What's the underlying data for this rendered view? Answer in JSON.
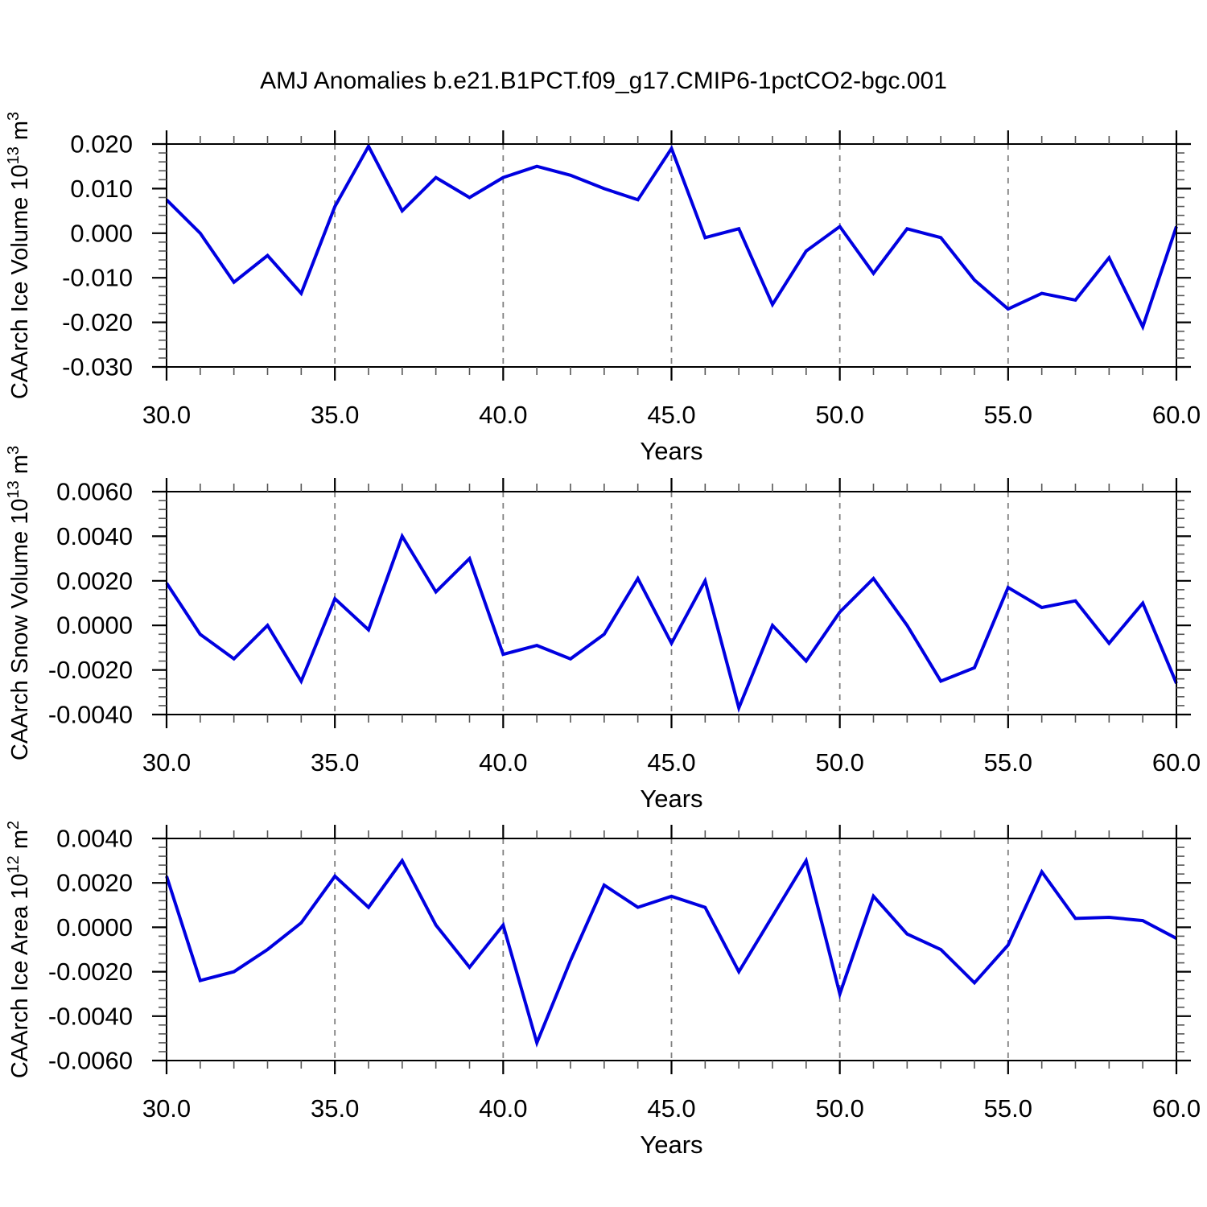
{
  "title": "AMJ Anomalies b.e21.B1PCT.f09_g17.CMIP6-1pctCO2-bgc.001",
  "line_color": "#0000e0",
  "chart_data": [
    {
      "type": "line",
      "ylabel": "CAArch Ice Volume 10^13 m^3",
      "ylabel_parts": [
        {
          "t": "CAArch Ice Volume 10"
        },
        {
          "s": "13"
        },
        {
          "t": " m"
        },
        {
          "s": "3"
        }
      ],
      "xlabel": "Years",
      "xlim": [
        30,
        60
      ],
      "xticks": [
        30,
        35,
        40,
        45,
        50,
        55,
        60
      ],
      "xtick_decimals": 1,
      "grid_x_dashed": [
        35,
        40,
        45,
        50,
        55
      ],
      "ylim": [
        -0.03,
        0.02
      ],
      "ytick_step": 0.01,
      "ytick_decimals": 3,
      "x": [
        30,
        31,
        32,
        33,
        34,
        35,
        36,
        37,
        38,
        39,
        40,
        41,
        42,
        43,
        44,
        45,
        46,
        47,
        48,
        49,
        50,
        51,
        52,
        53,
        54,
        55,
        56,
        57,
        58,
        59,
        60
      ],
      "values": [
        0.0075,
        0.0,
        -0.011,
        -0.005,
        -0.0135,
        0.006,
        0.0195,
        0.005,
        0.0125,
        0.008,
        0.0125,
        0.015,
        0.013,
        0.01,
        0.0075,
        0.019,
        -0.001,
        0.001,
        -0.016,
        -0.004,
        0.0015,
        -0.009,
        0.001,
        -0.001,
        -0.0105,
        -0.017,
        -0.0135,
        -0.015,
        -0.0055,
        -0.021,
        0.0015
      ]
    },
    {
      "type": "line",
      "ylabel": "CAArch Snow Volume 10^13 m^3",
      "ylabel_parts": [
        {
          "t": "CAArch Snow Volume 10"
        },
        {
          "s": "13"
        },
        {
          "t": " m"
        },
        {
          "s": "3"
        }
      ],
      "xlabel": "Years",
      "xlim": [
        30,
        60
      ],
      "xticks": [
        30,
        35,
        40,
        45,
        50,
        55,
        60
      ],
      "xtick_decimals": 1,
      "grid_x_dashed": [
        35,
        40,
        45,
        50,
        55
      ],
      "ylim": [
        -0.004,
        0.006
      ],
      "ytick_step": 0.002,
      "ytick_decimals": 4,
      "x": [
        30,
        31,
        32,
        33,
        34,
        35,
        36,
        37,
        38,
        39,
        40,
        41,
        42,
        43,
        44,
        45,
        46,
        47,
        48,
        49,
        50,
        51,
        52,
        53,
        54,
        55,
        56,
        57,
        58,
        59,
        60
      ],
      "values": [
        0.0019,
        -0.0004,
        -0.0015,
        0.0,
        -0.0025,
        0.0012,
        -0.0002,
        0.004,
        0.0015,
        0.003,
        -0.0013,
        -0.0009,
        -0.0015,
        -0.0004,
        0.0021,
        -0.0008,
        0.002,
        -0.0037,
        0.0,
        -0.0016,
        0.0006,
        0.0021,
        0.0,
        -0.0025,
        -0.0019,
        0.0017,
        0.0008,
        0.0011,
        -0.0008,
        0.001,
        -0.0026
      ]
    },
    {
      "type": "line",
      "ylabel": "CAArch Ice Area 10^12 m^2",
      "ylabel_parts": [
        {
          "t": "CAArch Ice Area 10"
        },
        {
          "s": "12"
        },
        {
          "t": " m"
        },
        {
          "s": "2"
        }
      ],
      "xlabel": "Years",
      "xlim": [
        30,
        60
      ],
      "xticks": [
        30,
        35,
        40,
        45,
        50,
        55,
        60
      ],
      "xtick_decimals": 1,
      "grid_x_dashed": [
        35,
        40,
        45,
        50,
        55
      ],
      "ylim": [
        -0.006,
        0.004
      ],
      "ytick_step": 0.002,
      "ytick_decimals": 4,
      "x": [
        30,
        31,
        32,
        33,
        34,
        35,
        36,
        37,
        38,
        39,
        40,
        41,
        42,
        43,
        44,
        45,
        46,
        47,
        48,
        49,
        50,
        51,
        52,
        53,
        54,
        55,
        56,
        57,
        58,
        59,
        60
      ],
      "values": [
        0.0023,
        -0.0024,
        -0.002,
        -0.001,
        0.0002,
        0.0023,
        0.0009,
        0.003,
        0.0001,
        -0.0018,
        0.0001,
        -0.0052,
        -0.0015,
        0.0019,
        0.0009,
        0.0014,
        0.0009,
        -0.002,
        0.0005,
        0.003,
        -0.003,
        0.0014,
        -0.0003,
        -0.001,
        -0.0025,
        -0.0008,
        0.0025,
        0.0004,
        0.00045,
        0.0003,
        -0.0005
      ]
    }
  ]
}
